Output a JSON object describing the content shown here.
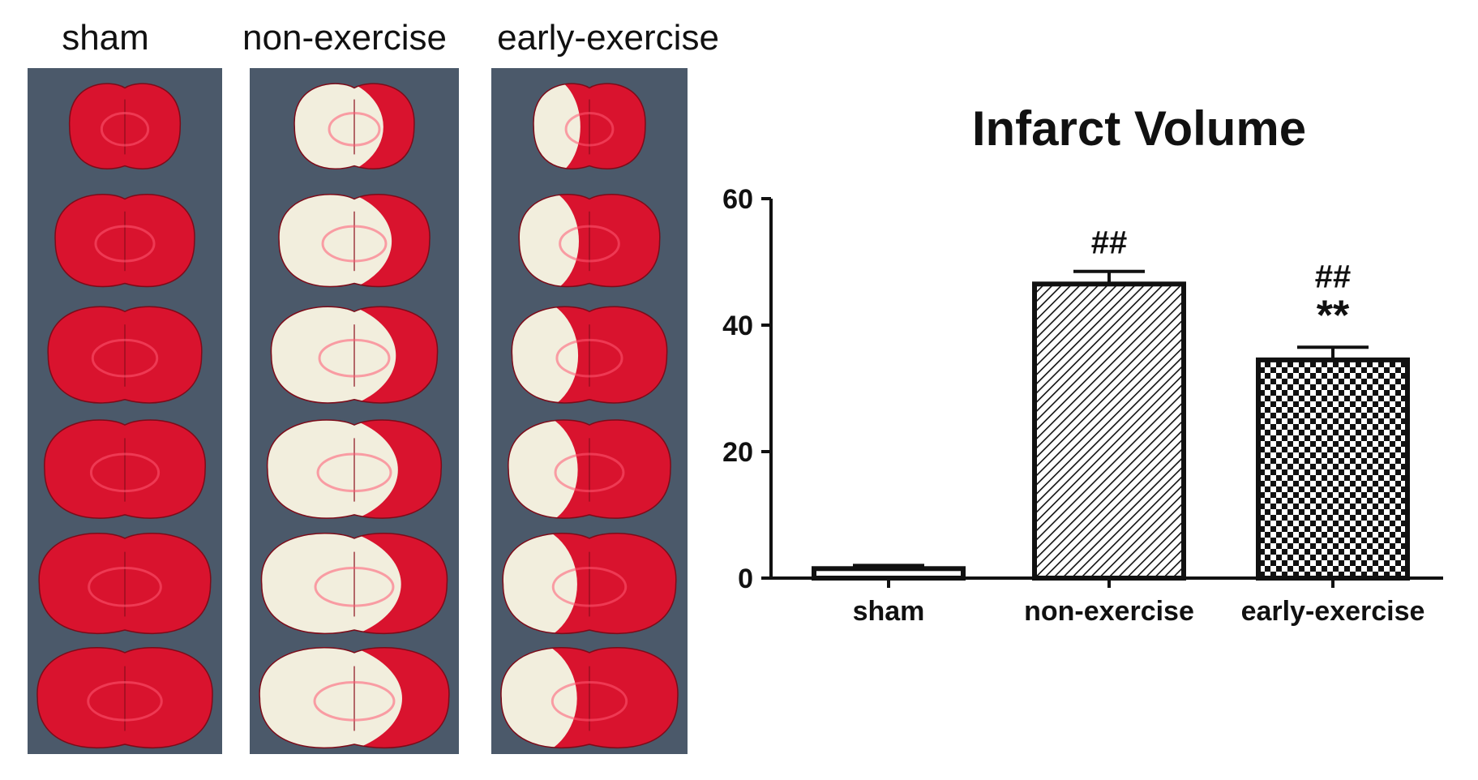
{
  "photos": {
    "panels": [
      {
        "label": "sham",
        "stain": "full"
      },
      {
        "label": "non-exercise",
        "stain": "large-infarct"
      },
      {
        "label": "early-exercise",
        "stain": "small-infarct"
      }
    ],
    "colors": {
      "tissue": "#d9132e",
      "infarct": "#f2eedd",
      "background": "#3c4a5a"
    }
  },
  "chart_data": {
    "type": "bar",
    "title": "Infarct Volume",
    "xlabel": "",
    "ylabel": "",
    "categories": [
      "sham",
      "non-exercise",
      "early-exercise"
    ],
    "values": [
      1.5,
      46.5,
      34.5
    ],
    "errors": [
      0.5,
      2.0,
      2.0
    ],
    "patterns": [
      "solid-white",
      "diagonal-hatch",
      "checkerboard"
    ],
    "annotations": [
      {
        "category": "non-exercise",
        "lines": [
          "##"
        ]
      },
      {
        "category": "early-exercise",
        "lines": [
          "##",
          "**"
        ]
      }
    ],
    "ylim": [
      0,
      60
    ],
    "yticks": [
      0,
      20,
      40,
      60
    ],
    "grid": false,
    "legend": "none"
  }
}
